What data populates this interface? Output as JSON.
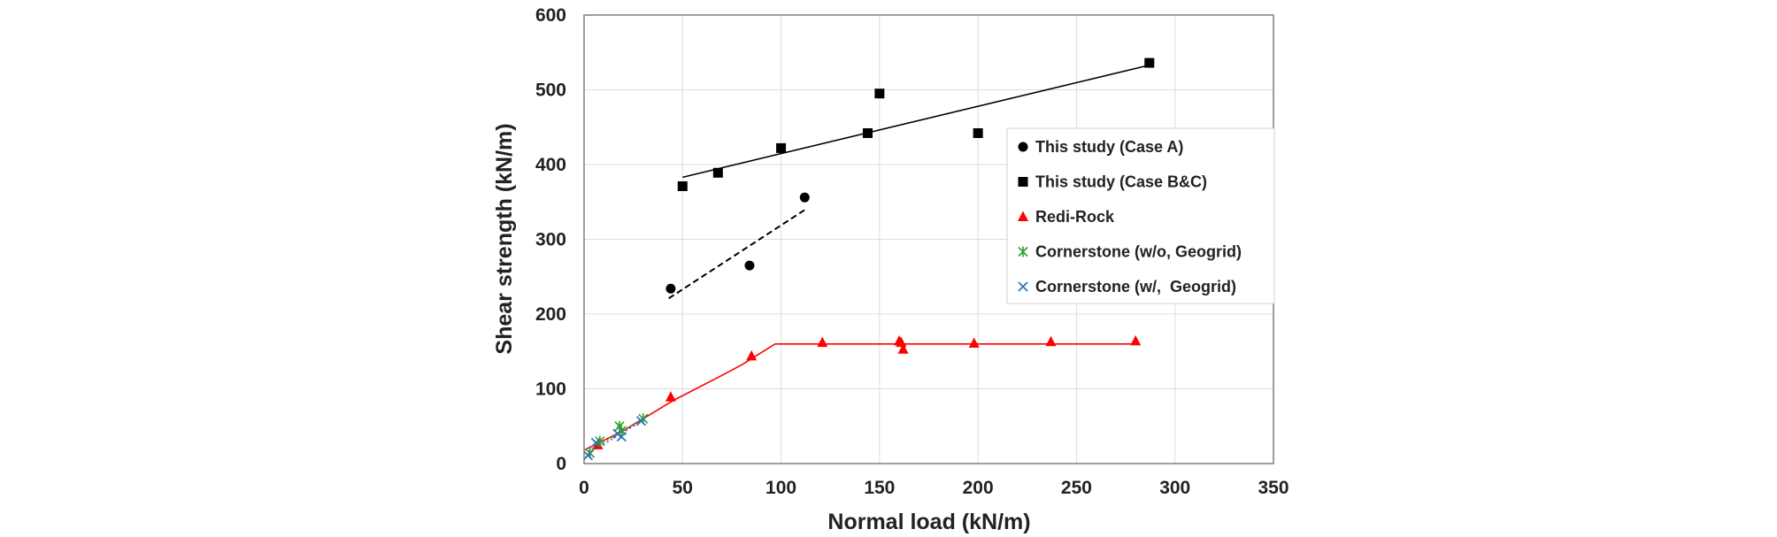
{
  "chart_data": {
    "type": "scatter",
    "title": "",
    "xlabel": "Normal load (kN/m)",
    "ylabel": "Shear strength (kN/m)",
    "xlim": [
      0,
      350
    ],
    "ylim": [
      0,
      600
    ],
    "xticks": [
      0,
      50,
      100,
      150,
      200,
      250,
      300,
      350
    ],
    "yticks": [
      0,
      100,
      200,
      300,
      400,
      500,
      600
    ],
    "grid": true,
    "legend_position": "center-right",
    "series": [
      {
        "name": "This study (Case A)",
        "marker": "circle",
        "color": "#000000",
        "points": [
          [
            44,
            234
          ],
          [
            84,
            265
          ],
          [
            112,
            356
          ]
        ]
      },
      {
        "name": "This study (Case B&C)",
        "marker": "square",
        "color": "#000000",
        "points": [
          [
            50,
            371
          ],
          [
            68,
            389
          ],
          [
            100,
            422
          ],
          [
            144,
            442
          ],
          [
            150,
            495
          ],
          [
            200,
            442
          ],
          [
            287,
            536
          ]
        ]
      },
      {
        "name": "Redi-Rock",
        "marker": "triangle",
        "color": "#ff0000",
        "points": [
          [
            7,
            25
          ],
          [
            44,
            89
          ],
          [
            85,
            144
          ],
          [
            121,
            162
          ],
          [
            160,
            164
          ],
          [
            161,
            162
          ],
          [
            162,
            153
          ],
          [
            198,
            161
          ],
          [
            237,
            163
          ],
          [
            280,
            164
          ]
        ]
      },
      {
        "name": "Cornerstone (w/o, Geogrid)",
        "marker": "star",
        "color": "#2ca02c",
        "points": [
          [
            3,
            14
          ],
          [
            8,
            30
          ],
          [
            18,
            50
          ],
          [
            19,
            44
          ],
          [
            30,
            60
          ]
        ]
      },
      {
        "name": "Cornerstone (w/,  Geogrid)",
        "marker": "x",
        "color": "#2e75b6",
        "points": [
          [
            2,
            11
          ],
          [
            6,
            28
          ],
          [
            17,
            40
          ],
          [
            19,
            36
          ],
          [
            29,
            57
          ]
        ]
      }
    ],
    "trendlines": [
      {
        "name": "Case A trend",
        "style": "dashed",
        "color": "#000000",
        "points": [
          [
            43,
            221
          ],
          [
            113,
            341
          ]
        ]
      },
      {
        "name": "Case B&C trend",
        "style": "solid",
        "color": "#000000",
        "points": [
          [
            50,
            383
          ],
          [
            287,
            533
          ]
        ]
      },
      {
        "name": "Redi-Rock trend",
        "style": "solid",
        "color": "#ff0000",
        "points": [
          [
            0,
            18
          ],
          [
            20,
            44
          ],
          [
            45,
            84
          ],
          [
            70,
            118
          ],
          [
            80,
            132
          ],
          [
            97,
            160
          ],
          [
            282,
            160
          ]
        ]
      },
      {
        "name": "Cornerstone (w/o) trend",
        "style": "dotted",
        "color": "#2ca02c",
        "points": [
          [
            2,
            16
          ],
          [
            31,
            62
          ]
        ]
      },
      {
        "name": "Cornerstone (w/) trend",
        "style": "dotted",
        "color": "#2e75b6",
        "points": [
          [
            2,
            13
          ],
          [
            30,
            58
          ]
        ]
      }
    ]
  }
}
